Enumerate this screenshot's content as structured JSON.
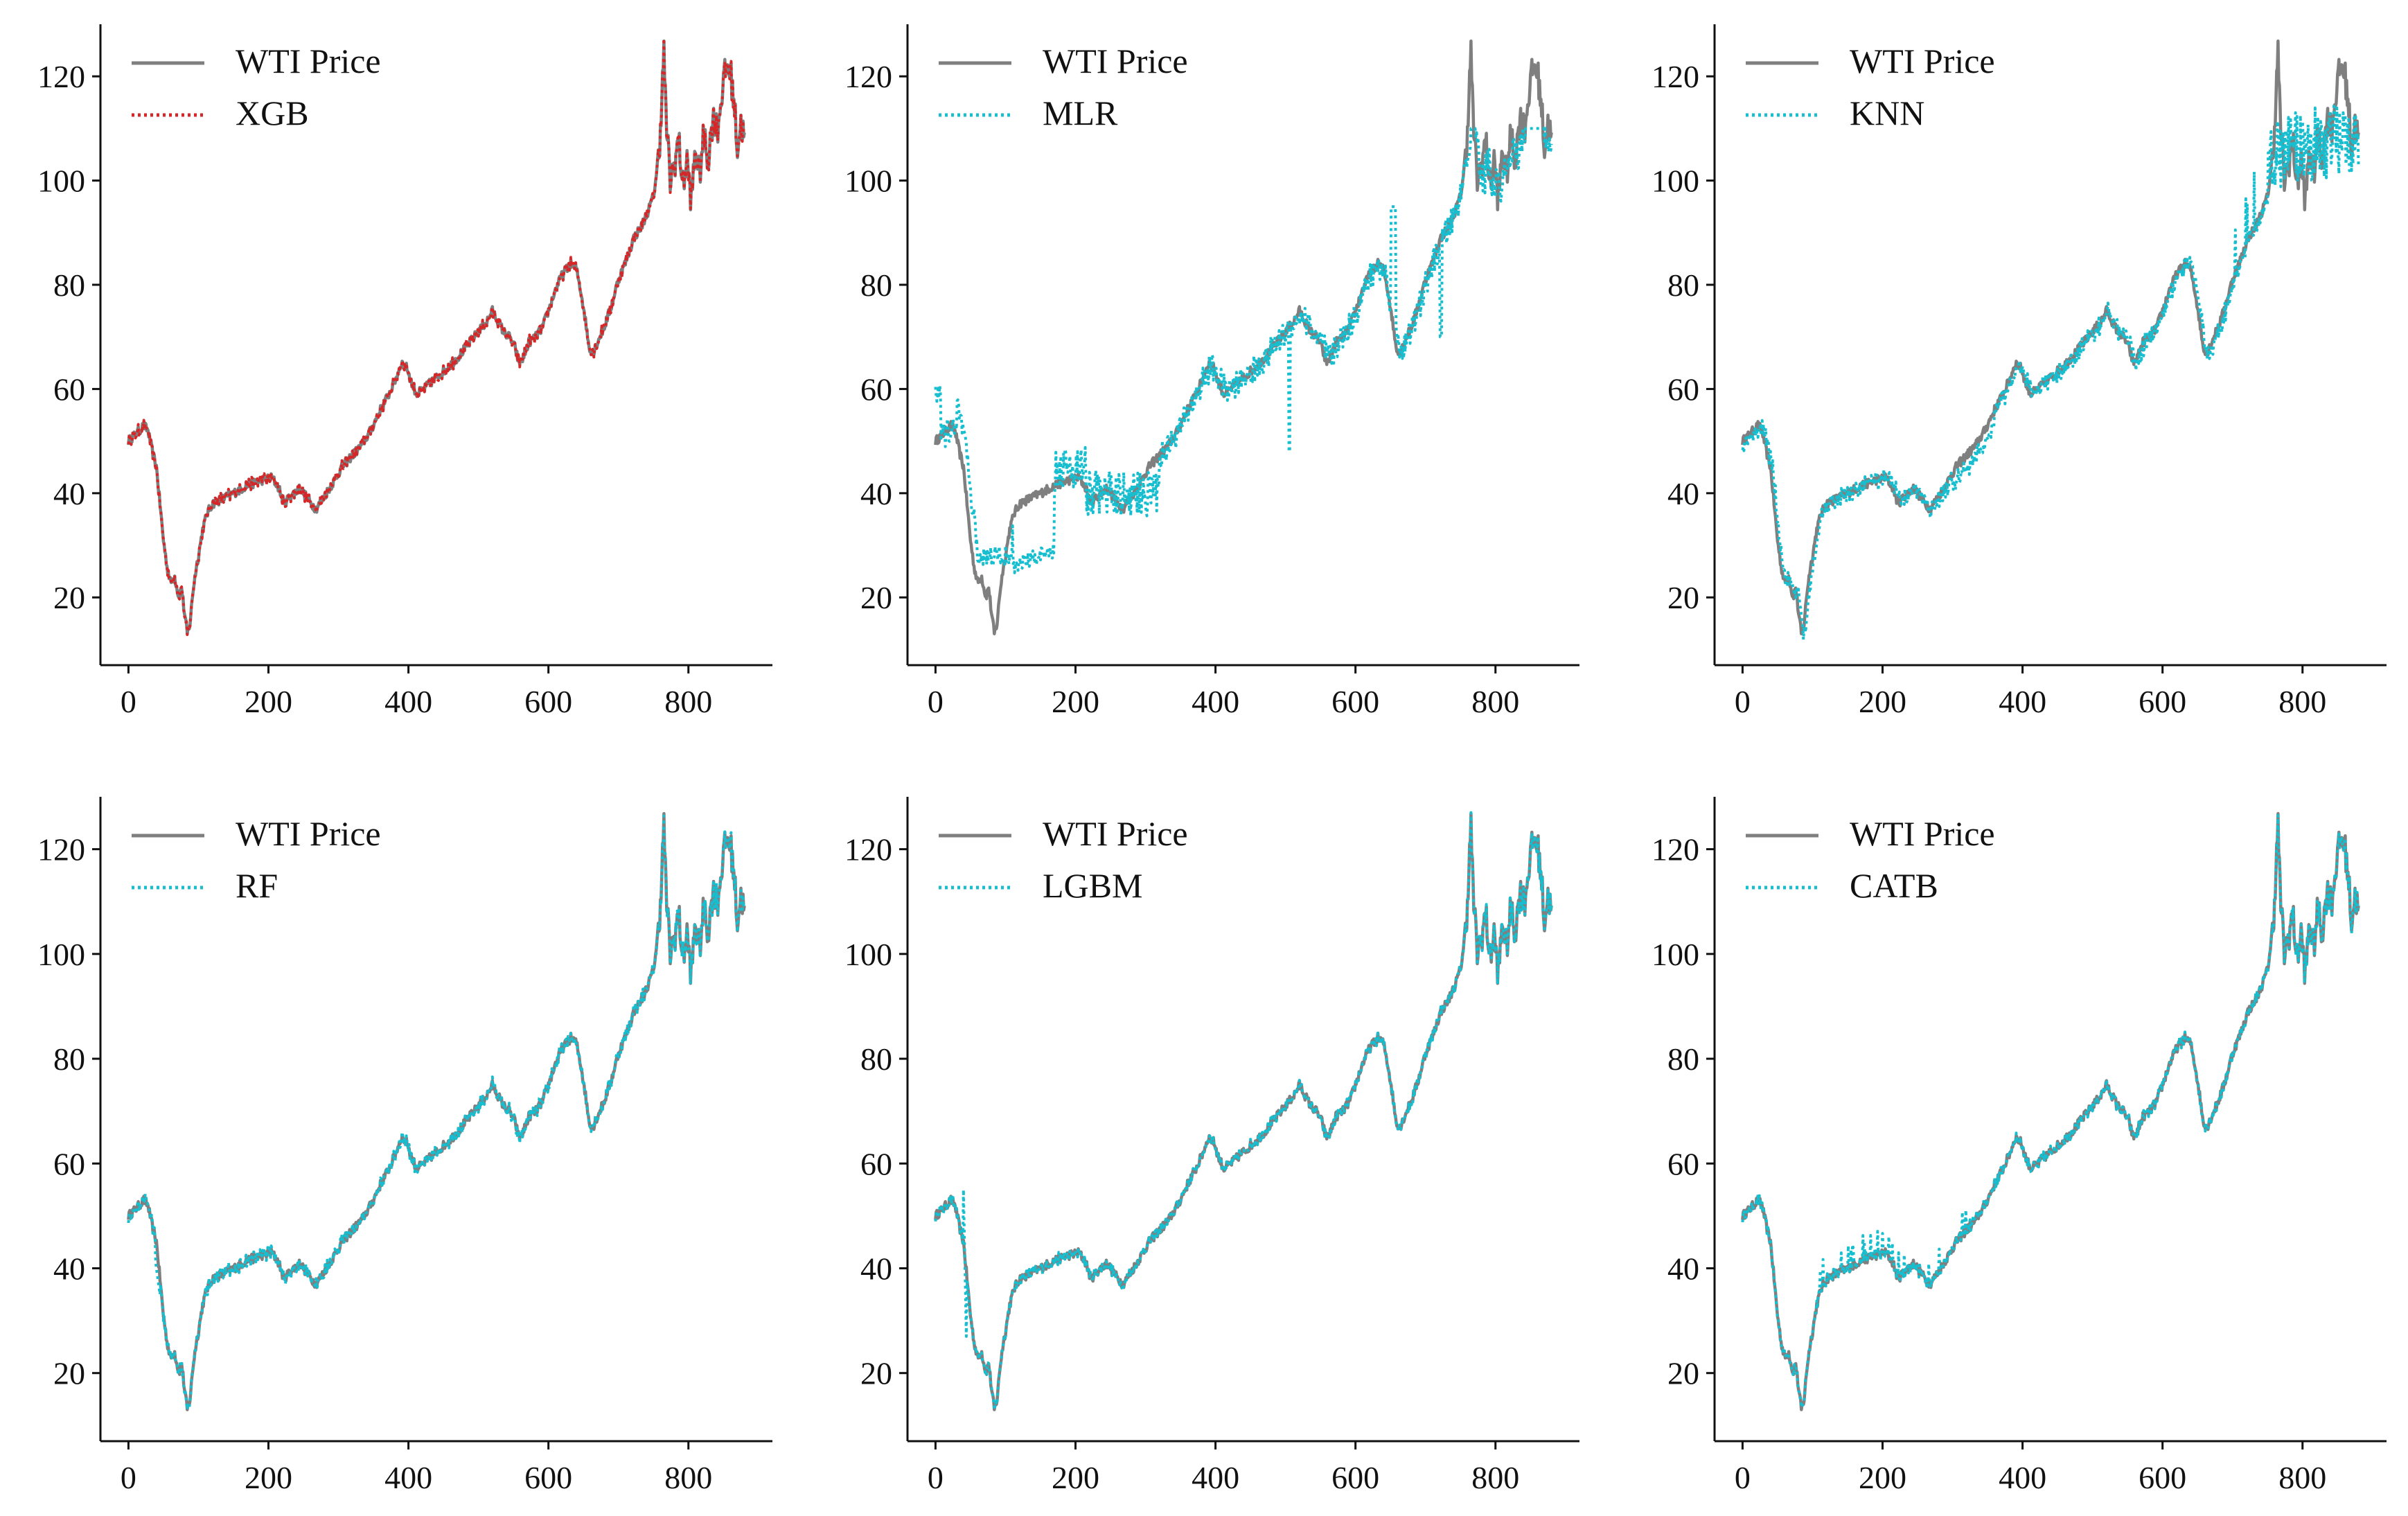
{
  "chart_data": [
    {
      "type": "line",
      "title": "",
      "xlabel": "",
      "ylabel": "",
      "xlim": [
        -40,
        920
      ],
      "ylim": [
        7,
        130
      ],
      "xticks": [
        0,
        200,
        400,
        600,
        800
      ],
      "yticks": [
        20,
        40,
        60,
        80,
        100,
        120
      ],
      "legend_position": "top-left",
      "series": [
        {
          "name": "WTI Price",
          "color": "#7f7f7f",
          "style": "solid"
        },
        {
          "name": "XGB",
          "color": "#d62728",
          "style": "dotted"
        }
      ]
    },
    {
      "type": "line",
      "title": "",
      "xlabel": "",
      "ylabel": "",
      "xlim": [
        -40,
        920
      ],
      "ylim": [
        7,
        130
      ],
      "xticks": [
        0,
        200,
        400,
        600,
        800
      ],
      "yticks": [
        20,
        40,
        60,
        80,
        100,
        120
      ],
      "legend_position": "top-left",
      "series": [
        {
          "name": "WTI Price",
          "color": "#7f7f7f",
          "style": "solid"
        },
        {
          "name": "MLR",
          "color": "#17becf",
          "style": "dotted"
        }
      ]
    },
    {
      "type": "line",
      "title": "",
      "xlabel": "",
      "ylabel": "",
      "xlim": [
        -40,
        920
      ],
      "ylim": [
        7,
        130
      ],
      "xticks": [
        0,
        200,
        400,
        600,
        800
      ],
      "yticks": [
        20,
        40,
        60,
        80,
        100,
        120
      ],
      "legend_position": "top-left",
      "series": [
        {
          "name": "WTI Price",
          "color": "#7f7f7f",
          "style": "solid"
        },
        {
          "name": "KNN",
          "color": "#17becf",
          "style": "dotted"
        }
      ]
    },
    {
      "type": "line",
      "title": "",
      "xlabel": "",
      "ylabel": "",
      "xlim": [
        -40,
        920
      ],
      "ylim": [
        7,
        130
      ],
      "xticks": [
        0,
        200,
        400,
        600,
        800
      ],
      "yticks": [
        20,
        40,
        60,
        80,
        100,
        120
      ],
      "legend_position": "top-left",
      "series": [
        {
          "name": "WTI Price",
          "color": "#7f7f7f",
          "style": "solid"
        },
        {
          "name": "RF",
          "color": "#17becf",
          "style": "dotted"
        }
      ]
    },
    {
      "type": "line",
      "title": "",
      "xlabel": "",
      "ylabel": "",
      "xlim": [
        -40,
        920
      ],
      "ylim": [
        7,
        130
      ],
      "xticks": [
        0,
        200,
        400,
        600,
        800
      ],
      "yticks": [
        20,
        40,
        60,
        80,
        100,
        120
      ],
      "legend_position": "top-left",
      "series": [
        {
          "name": "WTI Price",
          "color": "#7f7f7f",
          "style": "solid"
        },
        {
          "name": "LGBM",
          "color": "#17becf",
          "style": "dotted"
        }
      ]
    },
    {
      "type": "line",
      "title": "",
      "xlabel": "",
      "ylabel": "",
      "xlim": [
        -40,
        920
      ],
      "ylim": [
        7,
        130
      ],
      "xticks": [
        0,
        200,
        400,
        600,
        800
      ],
      "yticks": [
        20,
        40,
        60,
        80,
        100,
        120
      ],
      "legend_position": "top-left",
      "series": [
        {
          "name": "WTI Price",
          "color": "#7f7f7f",
          "style": "solid"
        },
        {
          "name": "CATB",
          "color": "#17becf",
          "style": "dotted"
        }
      ]
    }
  ],
  "wti_price_anchors": [
    [
      0,
      50
    ],
    [
      8,
      51
    ],
    [
      15,
      52
    ],
    [
      22,
      53
    ],
    [
      28,
      52
    ],
    [
      34,
      48
    ],
    [
      40,
      45
    ],
    [
      45,
      38
    ],
    [
      50,
      31
    ],
    [
      55,
      26
    ],
    [
      60,
      23
    ],
    [
      66,
      24
    ],
    [
      72,
      20
    ],
    [
      76,
      22
    ],
    [
      80,
      17
    ],
    [
      84,
      13
    ],
    [
      88,
      15
    ],
    [
      92,
      21
    ],
    [
      96,
      25
    ],
    [
      100,
      28
    ],
    [
      106,
      33
    ],
    [
      112,
      36
    ],
    [
      120,
      38
    ],
    [
      135,
      39
    ],
    [
      150,
      40
    ],
    [
      170,
      41.5
    ],
    [
      190,
      42.5
    ],
    [
      205,
      43
    ],
    [
      215,
      41
    ],
    [
      222,
      38
    ],
    [
      232,
      39.5
    ],
    [
      245,
      41
    ],
    [
      258,
      38.5
    ],
    [
      268,
      37
    ],
    [
      278,
      39
    ],
    [
      292,
      42
    ],
    [
      305,
      45
    ],
    [
      318,
      47
    ],
    [
      332,
      49
    ],
    [
      346,
      52
    ],
    [
      360,
      56
    ],
    [
      372,
      59
    ],
    [
      382,
      62
    ],
    [
      390,
      65
    ],
    [
      398,
      64
    ],
    [
      405,
      61
    ],
    [
      412,
      59
    ],
    [
      422,
      60
    ],
    [
      438,
      62
    ],
    [
      455,
      64
    ],
    [
      470,
      66
    ],
    [
      488,
      69
    ],
    [
      500,
      71
    ],
    [
      512,
      73
    ],
    [
      520,
      75
    ],
    [
      528,
      73
    ],
    [
      536,
      71
    ],
    [
      544,
      70
    ],
    [
      552,
      68
    ],
    [
      558,
      65
    ],
    [
      564,
      66
    ],
    [
      572,
      69
    ],
    [
      582,
      70
    ],
    [
      592,
      72
    ],
    [
      600,
      75
    ],
    [
      610,
      79
    ],
    [
      620,
      82
    ],
    [
      632,
      84
    ],
    [
      640,
      83
    ],
    [
      646,
      79
    ],
    [
      652,
      74
    ],
    [
      658,
      68
    ],
    [
      664,
      67
    ],
    [
      670,
      69
    ],
    [
      680,
      72
    ],
    [
      690,
      76
    ],
    [
      700,
      81
    ],
    [
      712,
      85
    ],
    [
      722,
      89
    ],
    [
      732,
      91
    ],
    [
      742,
      94
    ],
    [
      750,
      97
    ],
    [
      758,
      105
    ],
    [
      762,
      116
    ],
    [
      765,
      125
    ],
    [
      768,
      112
    ],
    [
      774,
      100
    ],
    [
      780,
      103
    ],
    [
      786,
      108
    ],
    [
      792,
      99
    ],
    [
      798,
      104
    ],
    [
      804,
      96
    ],
    [
      810,
      106
    ],
    [
      816,
      101
    ],
    [
      822,
      109
    ],
    [
      828,
      104
    ],
    [
      835,
      112
    ],
    [
      842,
      110
    ],
    [
      848,
      117
    ],
    [
      854,
      122
    ],
    [
      860,
      121
    ],
    [
      866,
      114
    ],
    [
      870,
      106
    ],
    [
      875,
      111
    ],
    [
      880,
      108
    ]
  ]
}
